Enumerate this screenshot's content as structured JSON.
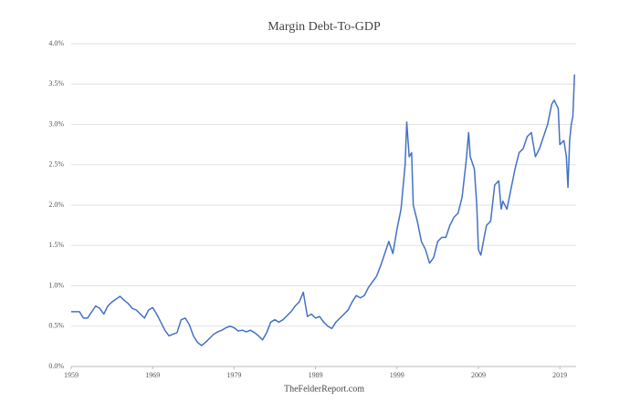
{
  "chart_data": {
    "type": "line",
    "title": "Margin Debt-To-GDP",
    "source": "TheFelderReport.com",
    "xlim": [
      1959,
      2021
    ],
    "xticks": [
      1959,
      1969,
      1979,
      1989,
      1999,
      2009,
      2019
    ],
    "ylim": [
      0,
      4
    ],
    "yticks": [
      {
        "value": 0,
        "label": "0.0%"
      },
      {
        "value": 0.5,
        "label": "0.5%"
      },
      {
        "value": 1,
        "label": "1.0%"
      },
      {
        "value": 1.5,
        "label": "1.5%"
      },
      {
        "value": 2,
        "label": "2.0%"
      },
      {
        "value": 2.5,
        "label": "2.5%"
      },
      {
        "value": 3,
        "label": "3.0%"
      },
      {
        "value": 3.5,
        "label": "3.5%"
      },
      {
        "value": 4,
        "label": "4.0%"
      }
    ],
    "grid": true,
    "x": [
      1959,
      1960,
      1960.5,
      1961,
      1962,
      1962.5,
      1963,
      1963.5,
      1964,
      1965,
      1965.5,
      1966,
      1966.5,
      1967,
      1967.5,
      1968,
      1968.5,
      1969,
      1969.5,
      1970,
      1970.5,
      1971,
      1971.5,
      1972,
      1972.5,
      1973,
      1973.5,
      1974,
      1974.5,
      1975,
      1975.5,
      1976,
      1976.5,
      1977,
      1977.5,
      1978,
      1978.5,
      1979,
      1979.5,
      1980,
      1980.5,
      1981,
      1981.5,
      1982,
      1982.5,
      1983,
      1983.5,
      1984,
      1984.5,
      1985,
      1985.5,
      1986,
      1986.5,
      1987,
      1987.5,
      1988,
      1988.5,
      1989,
      1989.5,
      1990,
      1990.5,
      1991,
      1991.5,
      1992,
      1992.5,
      1993,
      1993.5,
      1994,
      1994.5,
      1995,
      1995.5,
      1996,
      1996.5,
      1997,
      1997.5,
      1998,
      1998.5,
      1999,
      1999.5,
      2000,
      2000.2,
      2000.5,
      2000.8,
      2001,
      2001.5,
      2002,
      2002.5,
      2003,
      2003.5,
      2004,
      2004.5,
      2005,
      2005.5,
      2006,
      2006.5,
      2007,
      2007.5,
      2007.8,
      2008,
      2008.5,
      2008.8,
      2009,
      2009.3,
      2009.8,
      2010,
      2010.5,
      2011,
      2011.5,
      2011.8,
      2012,
      2012.5,
      2013,
      2013.5,
      2014,
      2014.5,
      2015,
      2015.5,
      2016,
      2016.5,
      2017,
      2017.5,
      2018,
      2018.3,
      2018.8,
      2019,
      2019.5,
      2019.8,
      2020,
      2020.2,
      2020.4,
      2020.6,
      2020.8
    ],
    "series": [
      {
        "name": "Margin Debt-To-GDP",
        "color": "#4472c4",
        "values": [
          0.68,
          0.68,
          0.6,
          0.6,
          0.75,
          0.72,
          0.65,
          0.75,
          0.8,
          0.87,
          0.82,
          0.78,
          0.72,
          0.7,
          0.65,
          0.6,
          0.7,
          0.73,
          0.65,
          0.55,
          0.45,
          0.38,
          0.4,
          0.42,
          0.58,
          0.6,
          0.52,
          0.38,
          0.3,
          0.26,
          0.3,
          0.35,
          0.4,
          0.43,
          0.45,
          0.48,
          0.5,
          0.48,
          0.44,
          0.45,
          0.43,
          0.45,
          0.42,
          0.38,
          0.33,
          0.42,
          0.55,
          0.58,
          0.55,
          0.58,
          0.63,
          0.68,
          0.75,
          0.8,
          0.92,
          0.62,
          0.65,
          0.6,
          0.62,
          0.55,
          0.5,
          0.47,
          0.55,
          0.6,
          0.65,
          0.7,
          0.8,
          0.88,
          0.85,
          0.88,
          0.98,
          1.05,
          1.12,
          1.25,
          1.4,
          1.55,
          1.4,
          1.7,
          1.95,
          2.5,
          3.03,
          2.6,
          2.65,
          2.0,
          1.8,
          1.55,
          1.45,
          1.28,
          1.35,
          1.55,
          1.6,
          1.6,
          1.75,
          1.85,
          1.9,
          2.1,
          2.55,
          2.9,
          2.6,
          2.45,
          2.0,
          1.45,
          1.38,
          1.65,
          1.75,
          1.8,
          2.25,
          2.3,
          1.95,
          2.05,
          1.95,
          2.2,
          2.45,
          2.65,
          2.7,
          2.85,
          2.9,
          2.6,
          2.7,
          2.85,
          3.0,
          3.25,
          3.3,
          3.2,
          2.75,
          2.8,
          2.6,
          2.22,
          2.8,
          3.0,
          3.1,
          3.62
        ]
      }
    ]
  }
}
